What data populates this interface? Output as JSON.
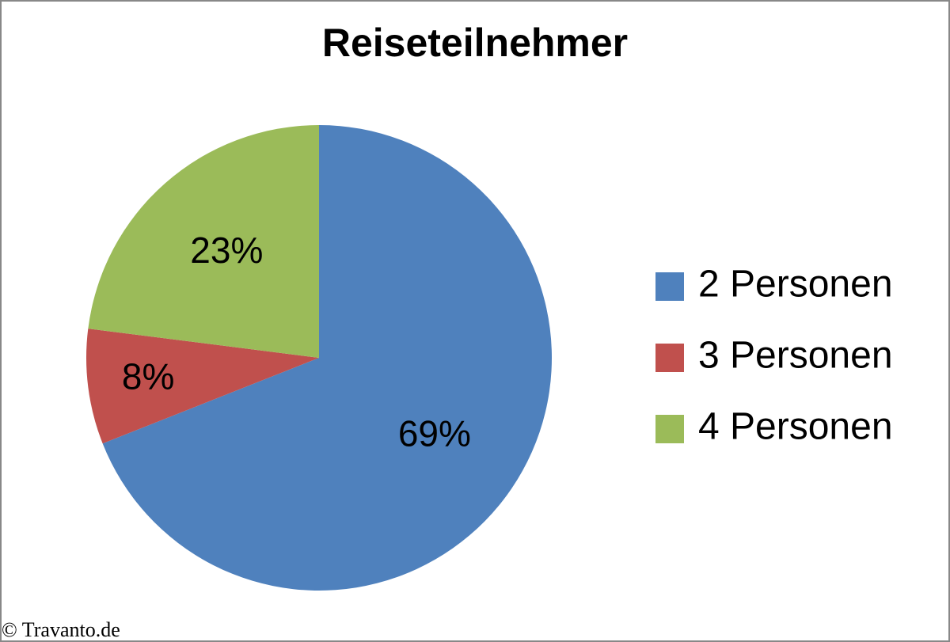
{
  "chart_data": {
    "type": "pie",
    "title": "Reiseteilnehmer",
    "categories": [
      "2 Personen",
      "3 Personen",
      "4 Personen"
    ],
    "values": [
      69,
      8,
      23
    ],
    "value_labels": [
      "69%",
      "8%",
      "23%"
    ],
    "colors": [
      "#4f81bd",
      "#c0504d",
      "#9bbb59"
    ],
    "legend": "right",
    "source": "© Travanto.de"
  }
}
